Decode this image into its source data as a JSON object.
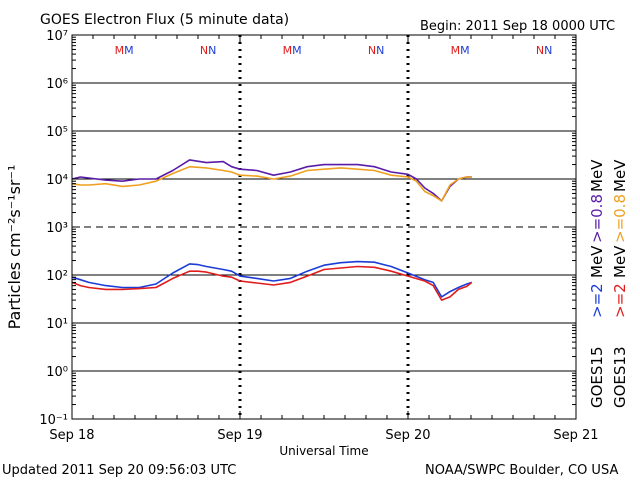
{
  "header": {
    "title": "GOES Electron Flux (5 minute data)",
    "begin": "Begin: 2011 Sep 18 0000 UTC"
  },
  "footer": {
    "updated": "Updated 2011 Sep 20 09:56:03 UTC",
    "source": "NOAA/SWPC Boulder, CO USA"
  },
  "colors": {
    "goes15_08": "#5a1ca8",
    "goes13_08": "#f0a020",
    "goes15_2": "#1c3cd8",
    "goes13_2": "#e01c1c",
    "axis": "#000000"
  },
  "legend": {
    "mev_label": "MeV",
    "e08_15": ">=0.8",
    "e08_13": ">=0.8",
    "e2_15": ">=2",
    "e2_13": ">=2",
    "goes15": "GOES15",
    "goes13": "GOES13"
  },
  "chart_data": {
    "type": "line",
    "title": "GOES Electron Flux (5 minute data)",
    "xlabel": "Universal Time",
    "ylabel": "Particles cm⁻²s⁻¹sr⁻¹",
    "x_unit": "days since 2011 Sep 18 0000 UTC",
    "xlim": [
      0,
      3
    ],
    "x_ticks": [
      "Sep 18",
      "Sep 19",
      "Sep 20",
      "Sep 21"
    ],
    "y_scale": "log",
    "ylim": [
      0.1,
      10000000
    ],
    "y_ticks": [
      "10⁻¹",
      "10⁰",
      "10¹",
      "10²",
      "10³",
      "10⁴",
      "10⁵",
      "10⁶",
      "10⁷"
    ],
    "grid": "horizontal lines at each decade; dashed line at 10³",
    "local_time_markers": [
      {
        "label": "MM",
        "x": 0.31
      },
      {
        "label": "NN",
        "x": 0.81
      },
      {
        "label": "MM",
        "x": 1.31
      },
      {
        "label": "NN",
        "x": 1.81
      },
      {
        "label": "MM",
        "x": 2.31
      },
      {
        "label": "NN",
        "x": 2.81
      }
    ],
    "series": [
      {
        "name": "GOES15 >=0.8 MeV",
        "x": [
          0.0,
          0.05,
          0.1,
          0.2,
          0.3,
          0.4,
          0.5,
          0.6,
          0.7,
          0.8,
          0.9,
          0.95,
          1.0,
          1.1,
          1.2,
          1.3,
          1.4,
          1.5,
          1.6,
          1.7,
          1.8,
          1.9,
          2.0,
          2.05,
          2.1,
          2.15,
          2.2,
          2.25,
          2.3,
          2.35,
          2.38
        ],
        "y": [
          10000,
          11000,
          10500,
          9500,
          9000,
          10000,
          10000,
          15000,
          25000,
          22000,
          23000,
          18000,
          16000,
          15000,
          12000,
          14000,
          18000,
          20000,
          20000,
          20000,
          18000,
          14000,
          12500,
          10000,
          6500,
          5000,
          3500,
          7000,
          10000,
          11000,
          11000
        ]
      },
      {
        "name": "GOES13 >=0.8 MeV",
        "x": [
          0.0,
          0.05,
          0.1,
          0.2,
          0.3,
          0.4,
          0.5,
          0.6,
          0.7,
          0.8,
          0.9,
          0.95,
          1.0,
          1.1,
          1.2,
          1.3,
          1.4,
          1.5,
          1.6,
          1.7,
          1.8,
          1.9,
          2.0,
          2.05,
          2.1,
          2.15,
          2.2,
          2.25,
          2.3,
          2.35,
          2.38
        ],
        "y": [
          8000,
          7500,
          7500,
          8000,
          7000,
          7500,
          9000,
          13000,
          18000,
          17000,
          15000,
          14000,
          12000,
          11500,
          10000,
          11500,
          15000,
          16000,
          17000,
          16000,
          15000,
          12000,
          11000,
          9000,
          5500,
          4500,
          3500,
          7500,
          10000,
          11000,
          11000
        ]
      },
      {
        "name": "GOES15 >=2 MeV",
        "x": [
          0.0,
          0.05,
          0.1,
          0.2,
          0.3,
          0.4,
          0.5,
          0.6,
          0.7,
          0.75,
          0.8,
          0.9,
          0.95,
          1.0,
          1.1,
          1.2,
          1.3,
          1.4,
          1.5,
          1.6,
          1.7,
          1.8,
          1.9,
          2.0,
          2.1,
          2.15,
          2.2,
          2.25,
          2.3,
          2.35,
          2.38
        ],
        "y": [
          90,
          80,
          70,
          60,
          55,
          55,
          65,
          110,
          170,
          165,
          150,
          130,
          120,
          95,
          85,
          75,
          85,
          120,
          160,
          180,
          190,
          185,
          150,
          110,
          80,
          70,
          35,
          45,
          55,
          65,
          70
        ]
      },
      {
        "name": "GOES13 >=2 MeV",
        "x": [
          0.0,
          0.05,
          0.1,
          0.2,
          0.3,
          0.4,
          0.5,
          0.6,
          0.7,
          0.75,
          0.8,
          0.9,
          0.95,
          1.0,
          1.1,
          1.2,
          1.3,
          1.4,
          1.5,
          1.6,
          1.7,
          1.8,
          1.9,
          2.0,
          2.1,
          2.15,
          2.2,
          2.25,
          2.3,
          2.35,
          2.38
        ],
        "y": [
          70,
          60,
          55,
          50,
          50,
          52,
          55,
          85,
          120,
          120,
          115,
          95,
          90,
          75,
          68,
          62,
          70,
          95,
          130,
          140,
          150,
          145,
          120,
          95,
          75,
          60,
          30,
          35,
          50,
          58,
          70
        ]
      }
    ]
  }
}
